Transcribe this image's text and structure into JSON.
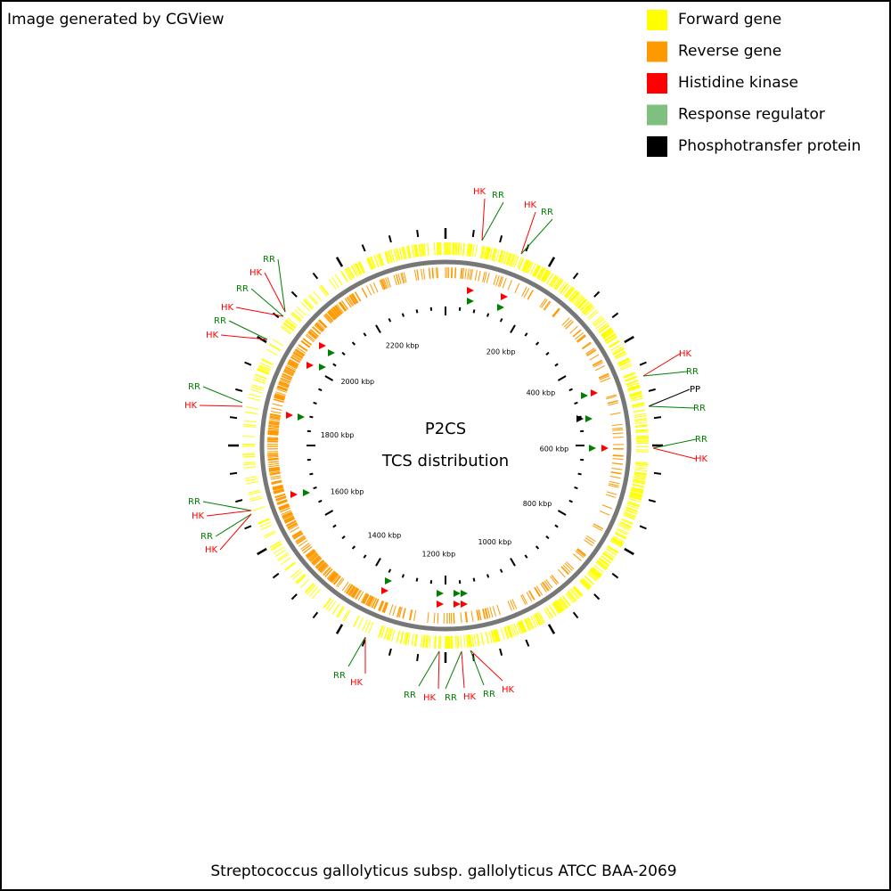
{
  "header": {
    "title": "Image generated by CGView"
  },
  "legend": [
    {
      "label": "Forward gene",
      "color": "#ffff00"
    },
    {
      "label": "Reverse gene",
      "color": "#ff9900"
    },
    {
      "label": "Histidine kinase",
      "color": "#ff0000"
    },
    {
      "label": "Response regulator",
      "color": "#7fbf7f"
    },
    {
      "label": "Phosphotransfer protein",
      "color": "#000000"
    }
  ],
  "center": {
    "title": "P2CS",
    "subtitle": "TCS distribution"
  },
  "ruler_labels": [
    "200 kbp",
    "400 kbp",
    "600 kbp",
    "800 kbp",
    "1000 kbp",
    "1200 kbp",
    "1400 kbp",
    "1600 kbp",
    "1800 kbp",
    "2000 kbp",
    "2200 kbp"
  ],
  "callouts": [
    "HK",
    "RR",
    "HK",
    "RR",
    "HK",
    "RR",
    "PP",
    "RR",
    "RR",
    "HK",
    "HK",
    "RR",
    "HK",
    "RR",
    "HK",
    "RR",
    "HK",
    "RR",
    "RR",
    "HK",
    "RR",
    "HK",
    "RR",
    "HK",
    "HK",
    "RR",
    "HK",
    "RR",
    "HK",
    "RR"
  ],
  "footer": "Streptococcus gallolyticus subsp. gallolyticus ATCC BAA-2069"
}
